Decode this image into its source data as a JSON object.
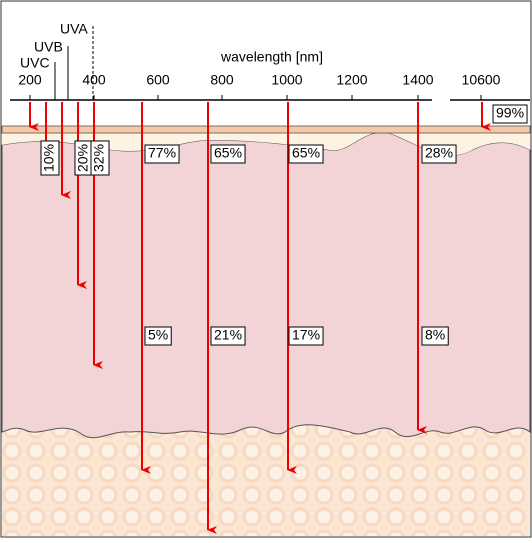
{
  "axis": {
    "label": "wavelength [nm]",
    "ticks": [
      "200",
      "400",
      "600",
      "800",
      "1000",
      "1200",
      "1400",
      "10600"
    ]
  },
  "bands": [
    "UVC",
    "UVB",
    "UVA"
  ],
  "upper_labels": [
    "10%",
    "20%",
    "32%",
    "77%",
    "65%",
    "65%",
    "28%",
    "99%"
  ],
  "lower_labels": [
    "5%",
    "21%",
    "17%",
    "8%"
  ]
}
